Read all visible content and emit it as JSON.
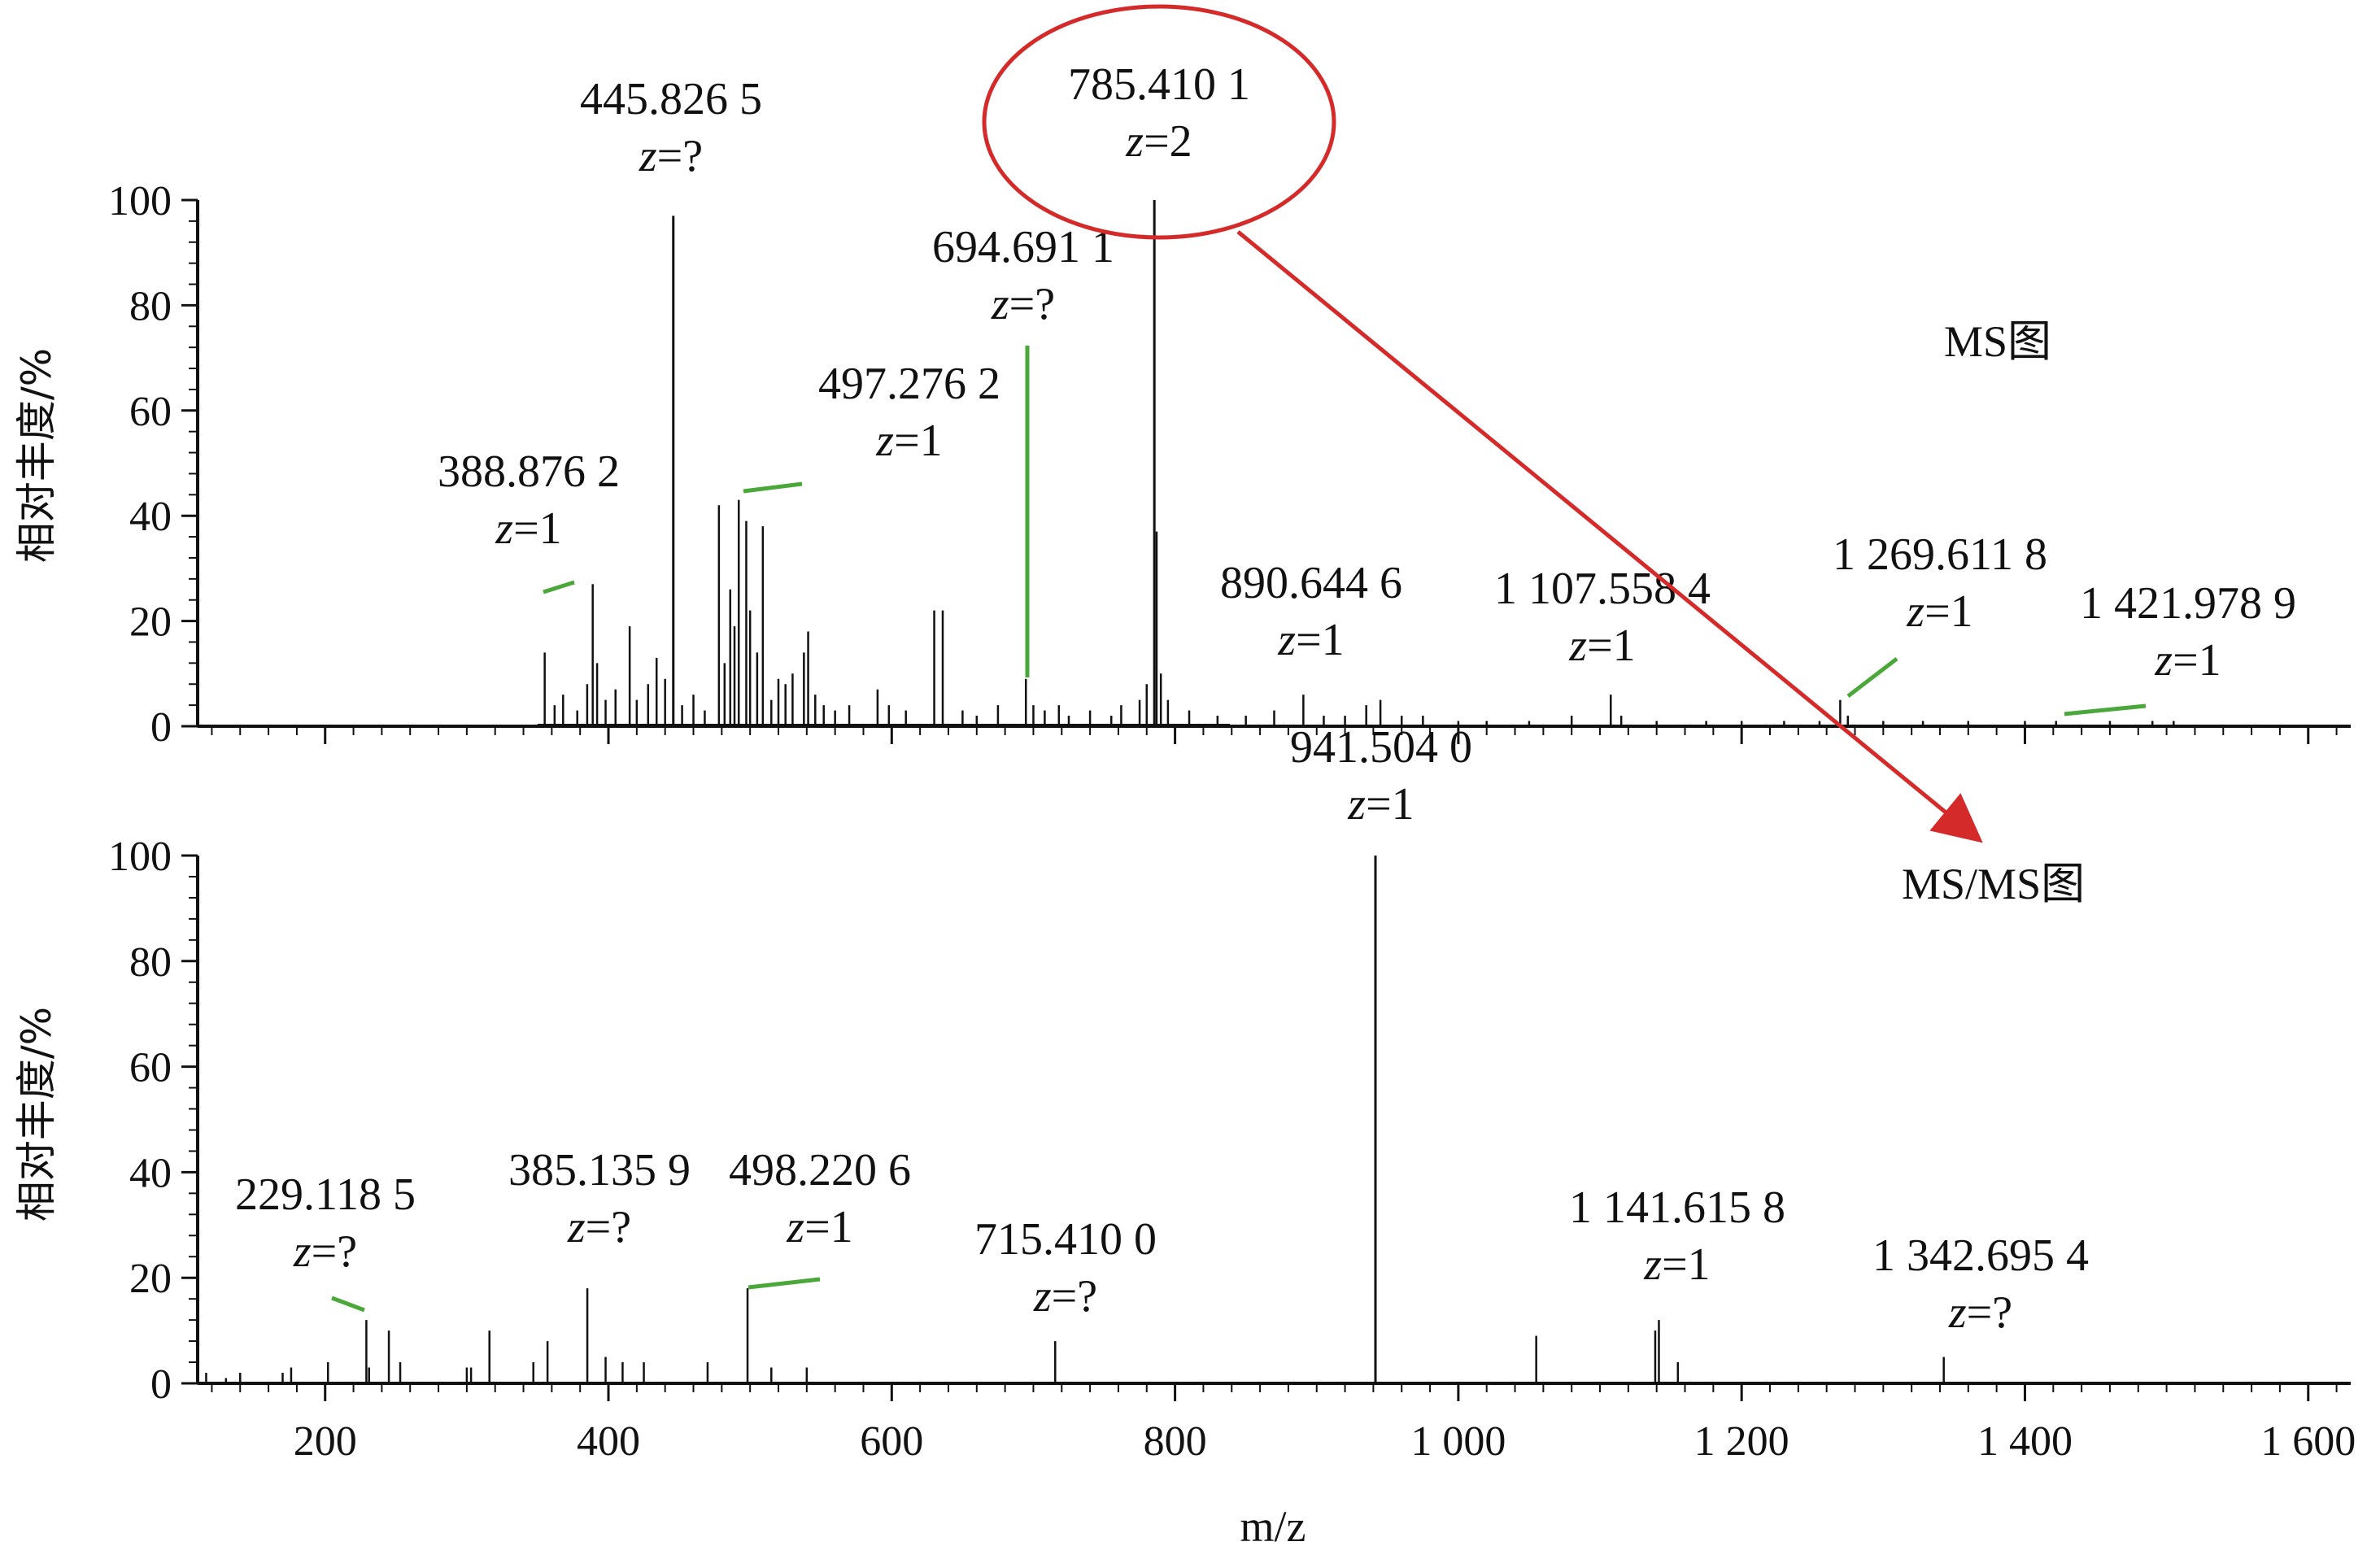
{
  "chart_data": [
    {
      "type": "line",
      "panel_label": "MS图",
      "ylabel": "相对丰度/%",
      "xlim": [
        110,
        1630
      ],
      "ylim": [
        0,
        100
      ],
      "yticks": [
        0,
        20,
        40,
        60,
        80,
        100
      ],
      "peaks": [
        [
          355,
          14
        ],
        [
          362,
          4
        ],
        [
          368,
          6
        ],
        [
          378,
          3
        ],
        [
          385,
          8
        ],
        [
          388.9,
          27
        ],
        [
          392,
          12
        ],
        [
          398,
          5
        ],
        [
          405,
          7
        ],
        [
          415,
          19
        ],
        [
          420,
          5
        ],
        [
          428,
          8
        ],
        [
          434,
          13
        ],
        [
          440,
          9
        ],
        [
          445.8,
          97
        ],
        [
          452,
          4
        ],
        [
          460,
          6
        ],
        [
          468,
          3
        ],
        [
          478,
          42
        ],
        [
          482,
          12
        ],
        [
          486,
          26
        ],
        [
          489,
          19
        ],
        [
          492,
          43
        ],
        [
          497.3,
          39
        ],
        [
          500,
          22
        ],
        [
          505,
          14
        ],
        [
          509,
          38
        ],
        [
          515,
          5
        ],
        [
          520,
          9
        ],
        [
          525,
          8
        ],
        [
          530,
          10
        ],
        [
          538,
          14
        ],
        [
          541,
          18
        ],
        [
          546,
          6
        ],
        [
          552,
          4
        ],
        [
          560,
          3
        ],
        [
          570,
          4
        ],
        [
          590,
          7
        ],
        [
          598,
          4
        ],
        [
          610,
          3
        ],
        [
          630,
          22
        ],
        [
          636,
          22
        ],
        [
          650,
          3
        ],
        [
          660,
          2
        ],
        [
          675,
          4
        ],
        [
          694.7,
          9
        ],
        [
          700,
          4
        ],
        [
          708,
          3
        ],
        [
          718,
          4
        ],
        [
          725,
          2
        ],
        [
          740,
          3
        ],
        [
          755,
          2
        ],
        [
          762,
          4
        ],
        [
          775,
          5
        ],
        [
          780,
          8
        ],
        [
          785.4,
          100
        ],
        [
          787,
          37
        ],
        [
          790,
          10
        ],
        [
          795,
          5
        ],
        [
          810,
          3
        ],
        [
          830,
          2
        ],
        [
          850,
          2
        ],
        [
          870,
          3
        ],
        [
          890.6,
          6
        ],
        [
          905,
          2
        ],
        [
          920,
          2
        ],
        [
          935,
          4
        ],
        [
          945,
          5
        ],
        [
          960,
          2
        ],
        [
          975,
          2
        ],
        [
          1000,
          1
        ],
        [
          1020,
          1
        ],
        [
          1050,
          1
        ],
        [
          1080,
          2
        ],
        [
          1107.6,
          6
        ],
        [
          1115,
          2
        ],
        [
          1140,
          1
        ],
        [
          1175,
          1
        ],
        [
          1200,
          1
        ],
        [
          1230,
          1
        ],
        [
          1255,
          1
        ],
        [
          1269.6,
          5
        ],
        [
          1275,
          2
        ],
        [
          1300,
          1
        ],
        [
          1328,
          1
        ],
        [
          1360,
          1
        ],
        [
          1400,
          1
        ],
        [
          1421.98,
          1
        ],
        [
          1460,
          1
        ],
        [
          1490,
          1
        ],
        [
          1505,
          1
        ]
      ],
      "annotations": [
        {
          "mz": 388.9,
          "label": "388.876 2",
          "z": "1"
        },
        {
          "mz": 445.8,
          "label": "445.826 5",
          "z": "?"
        },
        {
          "mz": 497.3,
          "label": "497.276 2",
          "z": "1"
        },
        {
          "mz": 694.7,
          "label": "694.691 1",
          "z": "?"
        },
        {
          "mz": 785.4,
          "label": "785.410 1",
          "z": "2",
          "highlight": "#d42a2a"
        },
        {
          "mz": 890.6,
          "label": "890.644 6",
          "z": "1"
        },
        {
          "mz": 1107.6,
          "label": "1 107.558 4",
          "z": "1"
        },
        {
          "mz": 1269.6,
          "label": "1 269.611 8",
          "z": "1"
        },
        {
          "mz": 1421.98,
          "label": "1 421.978 9",
          "z": "1"
        }
      ]
    },
    {
      "type": "line",
      "panel_label": "MS/MS图",
      "ylabel": "相对丰度/%",
      "xlabel": "m/z",
      "xlim": [
        110,
        1630
      ],
      "ylim": [
        0,
        100
      ],
      "yticks": [
        0,
        20,
        40,
        60,
        80,
        100
      ],
      "xticks": [
        200,
        400,
        600,
        800,
        1000,
        1200,
        1400,
        1600
      ],
      "xtick_labels": [
        "200",
        "400",
        "600",
        "800",
        "1 000",
        "1 200",
        "1 400",
        "1 600"
      ],
      "peaks": [
        [
          116,
          2
        ],
        [
          130,
          1
        ],
        [
          140,
          2
        ],
        [
          170,
          2
        ],
        [
          176,
          3
        ],
        [
          202,
          4
        ],
        [
          229.1,
          12
        ],
        [
          231,
          3
        ],
        [
          245,
          10
        ],
        [
          253,
          4
        ],
        [
          300,
          3
        ],
        [
          303,
          3
        ],
        [
          316,
          10
        ],
        [
          347,
          4
        ],
        [
          357,
          8
        ],
        [
          385.1,
          18
        ],
        [
          398,
          5
        ],
        [
          410,
          4
        ],
        [
          425,
          4
        ],
        [
          470,
          4
        ],
        [
          498.2,
          18
        ],
        [
          515,
          3
        ],
        [
          540,
          3
        ],
        [
          715.4,
          8
        ],
        [
          941.5,
          100
        ],
        [
          1055,
          9
        ],
        [
          1139,
          10
        ],
        [
          1141.6,
          12
        ],
        [
          1155,
          4
        ],
        [
          1342.7,
          5
        ]
      ],
      "annotations": [
        {
          "mz": 229.1,
          "label": "229.118 5",
          "z": "?"
        },
        {
          "mz": 385.1,
          "label": "385.135 9",
          "z": "?"
        },
        {
          "mz": 498.2,
          "label": "498.220 6",
          "z": "1"
        },
        {
          "mz": 715.4,
          "label": "715.410 0",
          "z": "?"
        },
        {
          "mz": 941.5,
          "label": "941.504 0",
          "z": "1"
        },
        {
          "mz": 1141.6,
          "label": "1 141.615 8",
          "z": "1"
        },
        {
          "mz": 1342.7,
          "label": "1 342.695 4",
          "z": "?"
        }
      ]
    }
  ],
  "colors": {
    "spectrum": "#111111",
    "leader_line": "#4aa83a",
    "highlight": "#d42a2a"
  }
}
